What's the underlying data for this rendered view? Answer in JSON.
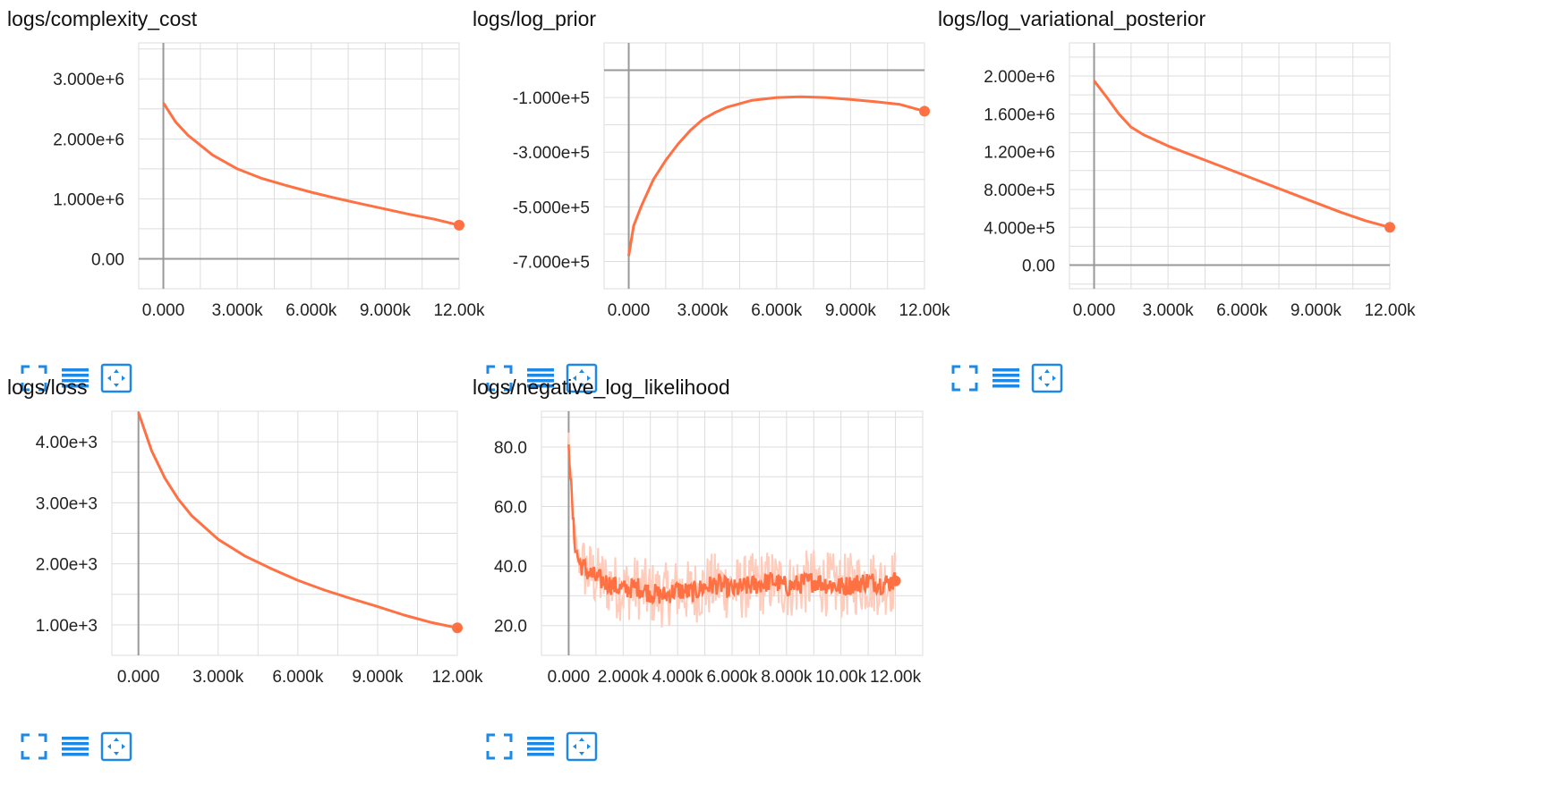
{
  "colors": {
    "accent": "#ff7043",
    "accent_light": "#ffccbc",
    "grid": "#dddddd",
    "axis": "#999999",
    "icon": "#1e88e5"
  },
  "toolbar_icons": [
    "fullscreen-icon",
    "list-icon",
    "fit-domain-icon"
  ],
  "charts": [
    {
      "title": "logs/complexity_cost",
      "chart_data": {
        "type": "line",
        "xlim": [
          -1000,
          12000
        ],
        "ylim": [
          -500000,
          3600000
        ],
        "yticks": [
          0,
          1000000,
          2000000,
          3000000
        ],
        "ytick_labels": [
          "0.00",
          "1.000e+6",
          "2.000e+6",
          "3.000e+6"
        ],
        "xticks": [
          0,
          3000,
          6000,
          9000,
          12000
        ],
        "xtick_labels": [
          "0.000",
          "3.000k",
          "6.000k",
          "9.000k",
          "12.00k"
        ],
        "series": [
          {
            "x": [
              0,
              500,
              1000,
              2000,
              3000,
              4000,
              5000,
              6000,
              7000,
              8000,
              9000,
              10000,
              11000,
              12000
            ],
            "y": [
              2600000,
              2280000,
              2060000,
              1730000,
              1500000,
              1340000,
              1220000,
              1110000,
              1010000,
              920000,
              830000,
              740000,
              660000,
              560000
            ]
          }
        ]
      }
    },
    {
      "title": "logs/log_prior",
      "chart_data": {
        "type": "line",
        "xlim": [
          -1000,
          12000
        ],
        "ylim": [
          -800000,
          100000
        ],
        "yticks": [
          -100000,
          -300000,
          -500000,
          -700000
        ],
        "ytick_labels": [
          "-1.000e+5",
          "-3.000e+5",
          "-5.000e+5",
          "-7.000e+5"
        ],
        "xticks": [
          0,
          3000,
          6000,
          9000,
          12000
        ],
        "xtick_labels": [
          "0.000",
          "3.000k",
          "6.000k",
          "9.000k",
          "12.00k"
        ],
        "series": [
          {
            "x": [
              0,
              200,
              500,
              1000,
              1500,
              2000,
              2500,
              3000,
              3500,
              4000,
              5000,
              6000,
              7000,
              8000,
              9000,
              10000,
              11000,
              12000
            ],
            "y": [
              -680000,
              -570000,
              -500000,
              -400000,
              -330000,
              -270000,
              -220000,
              -180000,
              -155000,
              -135000,
              -110000,
              -100000,
              -97000,
              -100000,
              -107000,
              -115000,
              -125000,
              -150000
            ]
          }
        ]
      }
    },
    {
      "title": "logs/log_variational_posterior",
      "chart_data": {
        "type": "line",
        "xlim": [
          -1000,
          12000
        ],
        "ylim": [
          -250000,
          2350000
        ],
        "yticks": [
          0,
          400000,
          800000,
          1200000,
          1600000,
          2000000
        ],
        "ytick_labels": [
          "0.00",
          "4.000e+5",
          "8.000e+5",
          "1.200e+6",
          "1.600e+6",
          "2.000e+6"
        ],
        "xticks": [
          0,
          3000,
          6000,
          9000,
          12000
        ],
        "xtick_labels": [
          "0.000",
          "3.000k",
          "6.000k",
          "9.000k",
          "12.00k"
        ],
        "series": [
          {
            "x": [
              0,
              500,
              1000,
              1500,
              2000,
              3000,
              4000,
              5000,
              6000,
              7000,
              8000,
              9000,
              10000,
              11000,
              12000
            ],
            "y": [
              1950000,
              1780000,
              1600000,
              1460000,
              1380000,
              1260000,
              1160000,
              1060000,
              960000,
              860000,
              760000,
              660000,
              560000,
              470000,
              400000
            ]
          }
        ]
      }
    },
    {
      "title": "logs/loss",
      "chart_data": {
        "type": "line",
        "xlim": [
          -1000,
          12000
        ],
        "ylim": [
          500,
          4500
        ],
        "yticks": [
          1000,
          2000,
          3000,
          4000
        ],
        "ytick_labels": [
          "1.00e+3",
          "2.00e+3",
          "3.00e+3",
          "4.00e+3"
        ],
        "xticks": [
          0,
          3000,
          6000,
          9000,
          12000
        ],
        "xtick_labels": [
          "0.000",
          "3.000k",
          "6.000k",
          "9.000k",
          "12.00k"
        ],
        "series": [
          {
            "x": [
              0,
              500,
              1000,
              1500,
              2000,
              3000,
              4000,
              5000,
              6000,
              7000,
              8000,
              9000,
              10000,
              11000,
              12000
            ],
            "y": [
              4480,
              3850,
              3400,
              3060,
              2790,
              2400,
              2130,
              1920,
              1730,
              1570,
              1430,
              1300,
              1160,
              1040,
              950
            ]
          }
        ]
      }
    },
    {
      "title": "logs/negative_log_likelihood",
      "chart_data": {
        "type": "line",
        "xlim": [
          -1000,
          13000
        ],
        "ylim": [
          10,
          92
        ],
        "yticks": [
          20,
          40,
          60,
          80
        ],
        "ytick_labels": [
          "20.0",
          "40.0",
          "60.0",
          "80.0"
        ],
        "xticks": [
          0,
          2000,
          4000,
          6000,
          8000,
          10000,
          12000
        ],
        "xtick_labels": [
          "0.000",
          "2.000k",
          "4.000k",
          "6.000k",
          "8.000k",
          "10.00k",
          "12.00k"
        ],
        "series": [
          {
            "x": [
              0,
              100,
              200,
              300,
              400,
              500,
              700,
              1000,
              1500,
              2000,
              2500,
              3000,
              3500,
              4000,
              4500,
              5000,
              5500,
              6000,
              6500,
              7000,
              7500,
              8000,
              8500,
              9000,
              9500,
              10000,
              10500,
              11000,
              11500,
              12000
            ],
            "y": [
              83,
              64,
              50,
              44,
              41,
              40,
              38,
              36,
              34,
              32,
              33,
              31,
              30,
              32,
              31,
              33,
              34,
              32,
              33,
              34,
              35,
              33,
              34,
              35,
              34,
              33,
              34,
              35,
              34,
              35
            ]
          }
        ]
      }
    }
  ]
}
